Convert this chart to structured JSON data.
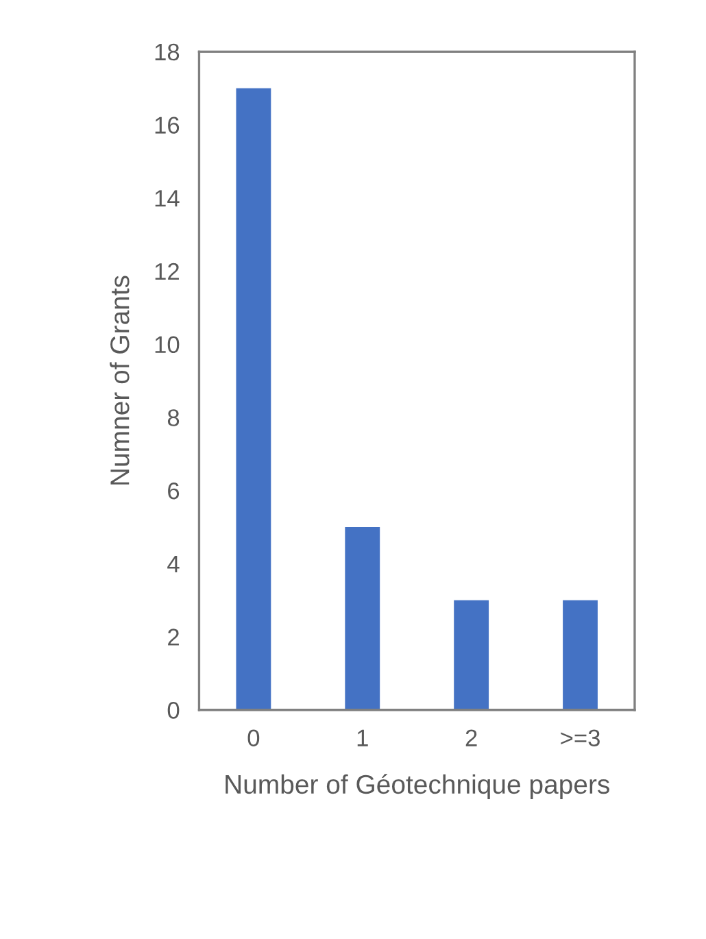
{
  "chart_data": {
    "type": "bar",
    "xlabel": "Number of Géotechnique papers",
    "ylabel": "Numner of Grants",
    "categories": [
      "0",
      "1",
      "2",
      ">=3"
    ],
    "values": [
      17,
      5,
      3,
      3
    ],
    "color": "#4472c4",
    "ylim": [
      0,
      18
    ],
    "yticks": [
      0,
      2,
      4,
      6,
      8,
      10,
      12,
      14,
      16,
      18
    ],
    "grid": false,
    "legend": false
  }
}
